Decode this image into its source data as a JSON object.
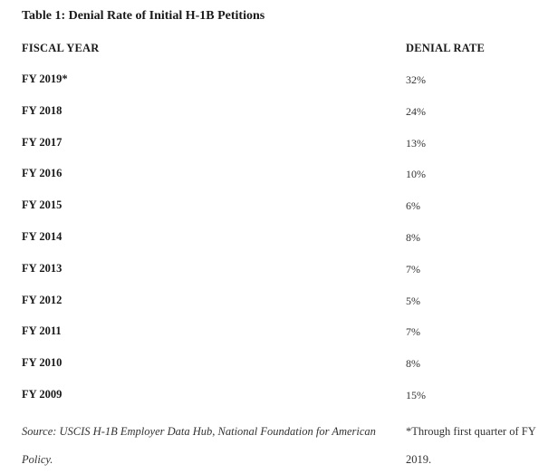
{
  "table": {
    "title": "Table 1: Denial Rate of Initial H-1B Petitions",
    "headers": {
      "fiscal_year": "FISCAL YEAR",
      "denial_rate": "DENIAL RATE"
    },
    "rows": [
      {
        "year": "FY 2019*",
        "rate": "32%"
      },
      {
        "year": "FY 2018",
        "rate": "24%"
      },
      {
        "year": "FY 2017",
        "rate": "13%"
      },
      {
        "year": "FY 2016",
        "rate": "10%"
      },
      {
        "year": "FY 2015",
        "rate": "6%"
      },
      {
        "year": "FY 2014",
        "rate": "8%"
      },
      {
        "year": "FY 2013",
        "rate": "7%"
      },
      {
        "year": "FY 2012",
        "rate": "5%"
      },
      {
        "year": "FY 2011",
        "rate": "7%"
      },
      {
        "year": "FY 2010",
        "rate": "8%"
      },
      {
        "year": "FY 2009",
        "rate": "15%"
      }
    ],
    "source": "Source: USCIS H-1B Employer Data Hub, National Foundation for American Policy.",
    "footnote": "*Through first quarter of FY 2019."
  }
}
